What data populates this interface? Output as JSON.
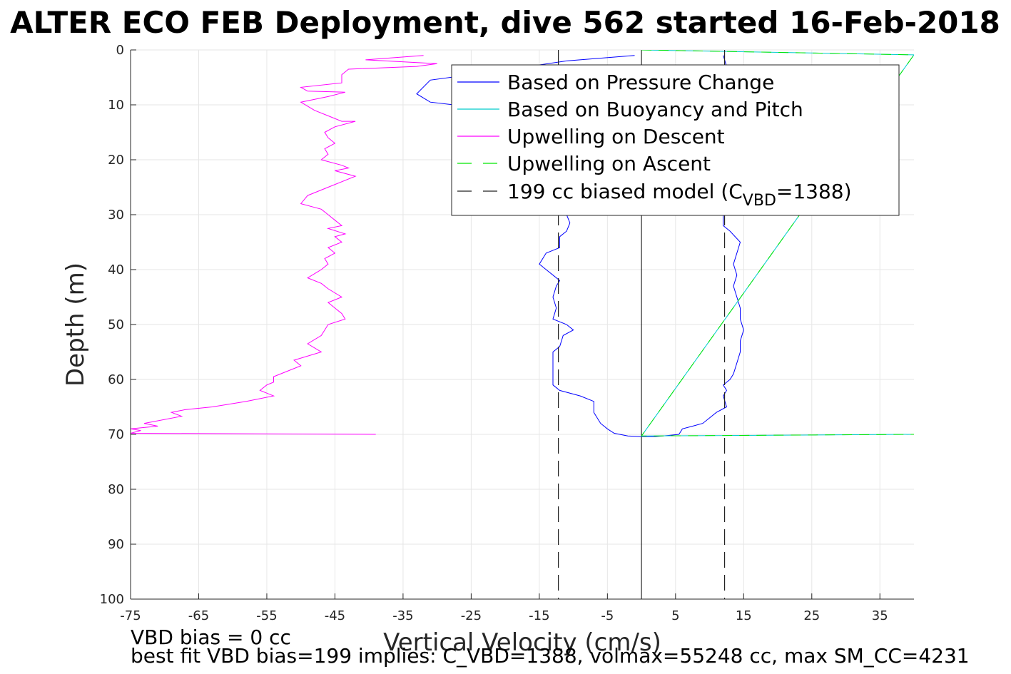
{
  "chart_data": {
    "type": "line",
    "title": "ALTER ECO FEB Deployment, dive 562 started 16-Feb-2018",
    "xlabel": "Vertical Velocity (cm/s)",
    "ylabel": "Depth (m)",
    "xlim": [
      -75,
      40
    ],
    "ylim": [
      0,
      100
    ],
    "y_reversed": true,
    "grid": true,
    "legend_position": "top-right",
    "xticks": [
      -75,
      -65,
      -55,
      -45,
      -35,
      -25,
      -15,
      -5,
      5,
      15,
      25,
      35
    ],
    "yticks": [
      0,
      10,
      20,
      30,
      40,
      50,
      60,
      70,
      80,
      90,
      100
    ],
    "series": [
      {
        "name": "Based on Pressure Change",
        "color": "#0000ff",
        "style": "solid",
        "points": [
          [
            -1,
            1
          ],
          [
            -11,
            2
          ],
          [
            -22,
            4
          ],
          [
            -31,
            5.5
          ],
          [
            -33,
            8
          ],
          [
            -31,
            9.5
          ],
          [
            -24,
            10.5
          ],
          [
            -19,
            12
          ],
          [
            -16,
            14
          ],
          [
            -14,
            17
          ],
          [
            -13,
            20
          ],
          [
            -12,
            23
          ],
          [
            -11.5,
            26
          ],
          [
            -11.5,
            28
          ],
          [
            -11,
            30
          ],
          [
            -10.5,
            31.5
          ],
          [
            -11,
            33
          ],
          [
            -12,
            34
          ],
          [
            -12,
            36
          ],
          [
            -14,
            37
          ],
          [
            -15,
            39
          ],
          [
            -13,
            41
          ],
          [
            -12,
            42
          ],
          [
            -12.5,
            43
          ],
          [
            -13,
            45
          ],
          [
            -12.5,
            47
          ],
          [
            -13,
            49
          ],
          [
            -11,
            50
          ],
          [
            -10,
            51
          ],
          [
            -11.5,
            52
          ],
          [
            -12,
            54
          ],
          [
            -13,
            55
          ],
          [
            -13,
            57
          ],
          [
            -13,
            59
          ],
          [
            -13,
            61
          ],
          [
            -12,
            62
          ],
          [
            -9,
            63
          ],
          [
            -7,
            64
          ],
          [
            -7,
            66
          ],
          [
            -6.5,
            67
          ],
          [
            -6,
            68
          ],
          [
            -5,
            69
          ],
          [
            -4,
            69.8
          ],
          [
            -2,
            70.3
          ],
          [
            0,
            70.4
          ],
          [
            2,
            70.4
          ],
          [
            4,
            70.2
          ],
          [
            5.5,
            70
          ],
          [
            6,
            69
          ],
          [
            7.5,
            68.5
          ],
          [
            9,
            68
          ],
          [
            10,
            67
          ],
          [
            11,
            66
          ],
          [
            12.5,
            65
          ],
          [
            12,
            63
          ],
          [
            12.5,
            62
          ],
          [
            12,
            61
          ],
          [
            13,
            60
          ],
          [
            13.5,
            59
          ],
          [
            14,
            57
          ],
          [
            14.5,
            55
          ],
          [
            14.5,
            53
          ],
          [
            15,
            51
          ],
          [
            14.5,
            49
          ],
          [
            14.5,
            47
          ],
          [
            14,
            45
          ],
          [
            13.5,
            43
          ],
          [
            14,
            41
          ],
          [
            13.5,
            39
          ],
          [
            14,
            37
          ],
          [
            14.5,
            35
          ],
          [
            13,
            33
          ],
          [
            12,
            32
          ],
          [
            12,
            30
          ],
          [
            12,
            25
          ],
          [
            12,
            20
          ],
          [
            12.5,
            15
          ],
          [
            12.5,
            10
          ],
          [
            13.5,
            5
          ],
          [
            12.5,
            3
          ],
          [
            12,
            1
          ]
        ]
      },
      {
        "name": "Based on Buoyancy and Pitch",
        "color": "#00cccc",
        "style": "solid",
        "points": [
          [
            0,
            0
          ],
          [
            40,
            0.9
          ],
          [
            0,
            70.3
          ],
          [
            40,
            70
          ]
        ]
      },
      {
        "name": "Upwelling on Descent",
        "color": "#ff00ff",
        "style": "solid",
        "points": [
          [
            -32,
            1
          ],
          [
            -40.5,
            1.8
          ],
          [
            -30,
            2.5
          ],
          [
            -33,
            3
          ],
          [
            -43,
            3.5
          ],
          [
            -44,
            4.5
          ],
          [
            -44,
            6
          ],
          [
            -50,
            6.8
          ],
          [
            -49,
            7.5
          ],
          [
            -43.5,
            7.7
          ],
          [
            -46,
            8.5
          ],
          [
            -50,
            9.5
          ],
          [
            -48,
            11
          ],
          [
            -46,
            12
          ],
          [
            -44,
            13
          ],
          [
            -42,
            13
          ],
          [
            -45,
            14
          ],
          [
            -46.5,
            15
          ],
          [
            -46,
            16
          ],
          [
            -45,
            17
          ],
          [
            -46.5,
            18
          ],
          [
            -46,
            19
          ],
          [
            -47,
            20
          ],
          [
            -44,
            21
          ],
          [
            -43,
            21.5
          ],
          [
            -45,
            22
          ],
          [
            -42,
            23
          ],
          [
            -46,
            25
          ],
          [
            -49,
            26.5
          ],
          [
            -50,
            28
          ],
          [
            -47,
            29
          ],
          [
            -46,
            30
          ],
          [
            -45,
            31
          ],
          [
            -44,
            32
          ],
          [
            -46,
            32.5
          ],
          [
            -43.5,
            33.5
          ],
          [
            -45,
            34
          ],
          [
            -44,
            35
          ],
          [
            -46,
            36
          ],
          [
            -45,
            37
          ],
          [
            -46.5,
            38
          ],
          [
            -46,
            39
          ],
          [
            -47,
            40
          ],
          [
            -49,
            41.5
          ],
          [
            -47,
            42.5
          ],
          [
            -46,
            43.5
          ],
          [
            -44,
            45
          ],
          [
            -46,
            46
          ],
          [
            -45,
            47
          ],
          [
            -44,
            48
          ],
          [
            -43.5,
            49
          ],
          [
            -46,
            50
          ],
          [
            -47,
            52
          ],
          [
            -49,
            53.5
          ],
          [
            -47,
            55
          ],
          [
            -51,
            56.5
          ],
          [
            -50,
            57.5
          ],
          [
            -52,
            58.5
          ],
          [
            -54,
            59.5
          ],
          [
            -54,
            60.5
          ],
          [
            -55,
            61
          ],
          [
            -56,
            62
          ],
          [
            -54,
            63
          ],
          [
            -58,
            64
          ],
          [
            -63,
            65
          ],
          [
            -67,
            65.5
          ],
          [
            -69,
            66
          ],
          [
            -67.5,
            66.7
          ],
          [
            -73,
            68
          ],
          [
            -71,
            68.5
          ],
          [
            -75,
            69
          ],
          [
            -73.5,
            69.3
          ],
          [
            -75,
            69.8
          ],
          [
            -39,
            70
          ]
        ]
      },
      {
        "name": "Upwelling on Ascent",
        "color": "#00e600",
        "style": "dashed",
        "points": [
          [
            0,
            0
          ],
          [
            40,
            0.9
          ],
          [
            0,
            70.3
          ],
          [
            40,
            70
          ]
        ]
      },
      {
        "name": "199 cc biased model (C",
        "name_sub": "VBD",
        "name_tail": "=1388)",
        "color": "#222222",
        "style": "dashed",
        "x_left": -12.2,
        "x_right": 12.2,
        "y_range": [
          0,
          100
        ]
      }
    ],
    "reference_line": {
      "x": 0,
      "color": "#000000"
    }
  },
  "footer": {
    "line1": "VBD bias = 0 cc",
    "line2": "best fit VBD bias=199 implies: C_VBD=1388, volmax=55248 cc, max SM_CC=4231"
  }
}
